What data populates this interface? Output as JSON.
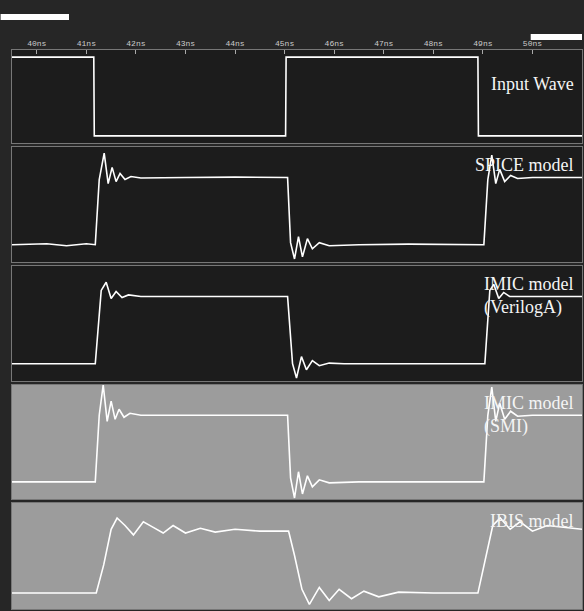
{
  "chart_data": [
    {
      "type": "line",
      "title": "Input Wave",
      "color": "#ffffff",
      "tick_labels": "x",
      "xlim": [
        39.5,
        51.0
      ],
      "ylim": [
        -0.3,
        3.6
      ],
      "xticks": [
        {
          "value": 40,
          "label": "40ns"
        },
        {
          "value": 41,
          "label": "41ns"
        },
        {
          "value": 42,
          "label": "42ns"
        },
        {
          "value": 43,
          "label": "43ns"
        },
        {
          "value": 44,
          "label": "44ns"
        },
        {
          "value": 45,
          "label": "45ns"
        },
        {
          "value": 46,
          "label": "46ns"
        },
        {
          "value": 47,
          "label": "47ns"
        },
        {
          "value": 48,
          "label": "48ns"
        },
        {
          "value": 49,
          "label": "49ns"
        },
        {
          "value": 50,
          "label": "50ns"
        }
      ],
      "x": [
        39.5,
        41.15,
        41.16,
        45.02,
        45.03,
        48.9,
        48.91,
        51.0
      ],
      "values": [
        3.3,
        3.3,
        0,
        0,
        3.3,
        3.3,
        0,
        0
      ]
    },
    {
      "type": "line",
      "title": "SPICE model",
      "color": "#ffffff",
      "tick_labels": false,
      "xlim": [
        39.5,
        51.0
      ],
      "ylim": [
        -0.85,
        4.8
      ],
      "x": [
        39.5,
        40.2,
        40.6,
        41.0,
        41.18,
        41.26,
        41.36,
        41.44,
        41.52,
        41.6,
        41.68,
        41.78,
        41.9,
        42.1,
        43.0,
        44.0,
        45.06,
        45.12,
        45.2,
        45.28,
        45.36,
        45.46,
        45.56,
        45.7,
        45.9,
        46.5,
        47.5,
        49.02,
        49.1,
        49.18,
        49.26,
        49.34,
        49.44,
        49.56,
        49.7,
        50.0,
        51.0
      ],
      "values": [
        0,
        0.05,
        -0.05,
        0.05,
        0,
        3.2,
        4.5,
        3.0,
        3.8,
        3.1,
        3.5,
        3.2,
        3.35,
        3.28,
        3.3,
        3.32,
        3.3,
        0.1,
        -0.7,
        0.4,
        -0.6,
        0.3,
        -0.2,
        0.1,
        -0.05,
        0,
        0.03,
        0,
        3.2,
        4.4,
        3.0,
        3.7,
        3.1,
        3.4,
        3.25,
        3.3,
        3.3
      ]
    },
    {
      "type": "line",
      "title": "IMIC model (VerilogA)",
      "color": "#ffffff",
      "tick_labels": false,
      "xlim": [
        39.5,
        51.0
      ],
      "ylim": [
        -0.85,
        4.8
      ],
      "x": [
        39.5,
        41.18,
        41.3,
        41.4,
        41.5,
        41.6,
        41.72,
        41.85,
        42.1,
        45.06,
        45.16,
        45.24,
        45.34,
        45.44,
        45.56,
        45.7,
        45.9,
        46.2,
        49.04,
        49.14,
        49.22,
        49.32,
        49.42,
        49.54,
        51.0
      ],
      "values": [
        0,
        0,
        3.6,
        4.0,
        3.2,
        3.55,
        3.25,
        3.38,
        3.3,
        3.3,
        0,
        -0.7,
        0.35,
        -0.3,
        0.15,
        -0.1,
        0.03,
        0,
        0,
        3.6,
        3.9,
        3.2,
        3.5,
        3.3,
        3.3
      ]
    },
    {
      "type": "line",
      "title": "IMIC model (SMI)",
      "color": "#ffffff",
      "tick_labels": false,
      "xlim": [
        39.5,
        51.0
      ],
      "ylim": [
        -0.85,
        4.8
      ],
      "x": [
        39.5,
        41.18,
        41.26,
        41.34,
        41.42,
        41.5,
        41.58,
        41.66,
        41.76,
        41.88,
        42.1,
        43.0,
        45.06,
        45.12,
        45.2,
        45.28,
        45.36,
        45.46,
        45.56,
        45.7,
        45.9,
        46.5,
        49.02,
        49.1,
        49.18,
        49.26,
        49.34,
        49.44,
        49.56,
        49.7,
        50.0,
        51.0
      ],
      "values": [
        0,
        0,
        3.3,
        4.8,
        3.0,
        4.0,
        3.1,
        3.6,
        3.2,
        3.4,
        3.3,
        3.3,
        3.3,
        0.2,
        -0.8,
        0.5,
        -0.6,
        0.3,
        -0.25,
        0.1,
        -0.05,
        0,
        0,
        3.3,
        4.7,
        3.0,
        3.9,
        3.1,
        3.5,
        3.25,
        3.3,
        3.3
      ]
    },
    {
      "type": "line",
      "title": "IBIS model",
      "color": "#ffffff",
      "tick_labels": false,
      "xlim": [
        39.5,
        51.0
      ],
      "ylim": [
        -0.85,
        4.8
      ],
      "x": [
        39.5,
        41.2,
        41.35,
        41.5,
        41.62,
        41.78,
        41.95,
        42.15,
        42.35,
        42.55,
        42.75,
        43.0,
        43.3,
        43.6,
        44.0,
        44.5,
        45.08,
        45.2,
        45.35,
        45.5,
        45.7,
        45.9,
        46.1,
        46.35,
        46.6,
        46.9,
        47.3,
        48.0,
        48.9,
        49.05,
        49.2,
        49.35,
        49.55,
        49.75,
        50.0,
        50.3,
        51.0
      ],
      "values": [
        0,
        0,
        1.5,
        3.4,
        4.0,
        3.6,
        3.1,
        3.8,
        3.5,
        3.2,
        3.6,
        3.2,
        3.45,
        3.25,
        3.4,
        3.3,
        3.3,
        2.0,
        0.2,
        -0.6,
        0.3,
        -0.4,
        0.2,
        -0.3,
        0.1,
        -0.2,
        0.05,
        0,
        0,
        1.8,
        3.6,
        4.0,
        3.4,
        3.8,
        3.3,
        3.6,
        3.4
      ]
    }
  ]
}
